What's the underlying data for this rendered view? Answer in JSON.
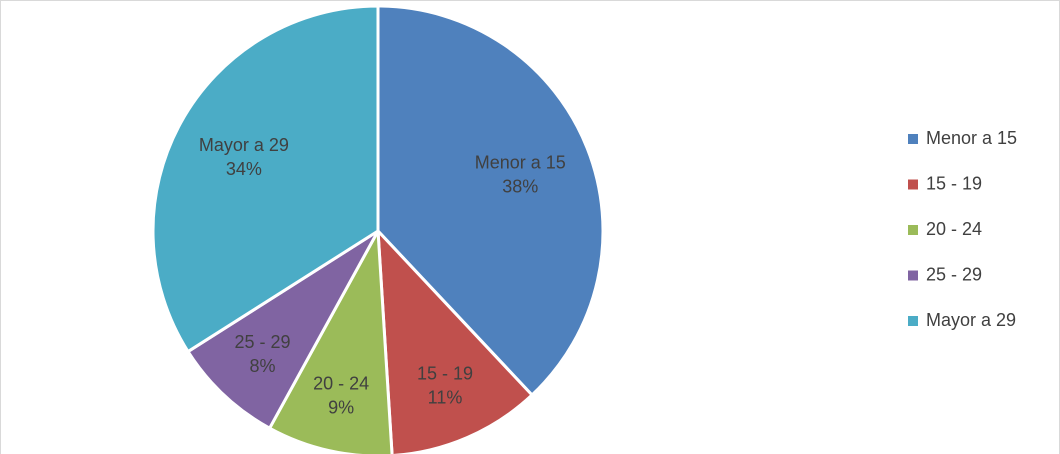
{
  "chart_data": {
    "type": "pie",
    "categories": [
      "Menor a 15",
      "15 - 19",
      "20 - 24",
      "25 - 29",
      "Mayor a 29"
    ],
    "values": [
      38,
      11,
      9,
      8,
      34
    ],
    "value_labels": [
      "38%",
      "11%",
      "9%",
      "8%",
      "34%"
    ],
    "colors": [
      "#4f81bd",
      "#c0504d",
      "#9bbb59",
      "#8064a2",
      "#4bacc6"
    ],
    "legend": "right"
  }
}
